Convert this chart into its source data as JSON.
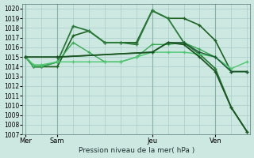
{
  "title": "Pression niveau de la mer( hPa )",
  "bg_color": "#cce8e0",
  "grid_color": "#aacccc",
  "plot_bg": "#cce8e0",
  "ylim": [
    1007,
    1020.5
  ],
  "xlim": [
    -0.2,
    14.2
  ],
  "yticks": [
    1007,
    1008,
    1009,
    1010,
    1011,
    1012,
    1013,
    1014,
    1015,
    1016,
    1017,
    1018,
    1019,
    1020
  ],
  "xtick_labels": [
    "Mer",
    "Sam",
    "Jeu",
    "Ven"
  ],
  "xtick_positions": [
    0,
    2,
    8,
    12
  ],
  "vline_positions": [
    0,
    2,
    8,
    12
  ],
  "series": [
    {
      "x": [
        0,
        0.5,
        1,
        2,
        3,
        4,
        5,
        6,
        7,
        8,
        9,
        10,
        11,
        12,
        13,
        14
      ],
      "y": [
        1015.0,
        1014.0,
        1014.0,
        1014.0,
        1017.2,
        1017.7,
        1016.5,
        1016.5,
        1016.5,
        1019.8,
        1019.0,
        1019.0,
        1018.3,
        1016.7,
        1013.5,
        1013.5
      ],
      "color": "#1a6020",
      "lw": 1.2,
      "marker": "+"
    },
    {
      "x": [
        0,
        0.5,
        1,
        2,
        3,
        4,
        5,
        6,
        7,
        8,
        9,
        10,
        11,
        12,
        13,
        14
      ],
      "y": [
        1015.0,
        1014.0,
        1014.0,
        1014.5,
        1018.2,
        1017.7,
        1016.5,
        1016.5,
        1016.3,
        1019.8,
        1019.0,
        1016.5,
        1015.3,
        1013.8,
        1009.8,
        1007.3
      ],
      "color": "#2a7a38",
      "lw": 1.3,
      "marker": "+"
    },
    {
      "x": [
        0,
        0.5,
        1,
        2,
        3,
        4,
        5,
        6,
        7,
        8,
        9,
        10,
        11,
        12,
        13,
        14
      ],
      "y": [
        1015.0,
        1014.0,
        1014.0,
        1014.5,
        1016.5,
        1015.5,
        1014.5,
        1014.5,
        1015.0,
        1016.3,
        1016.3,
        1016.5,
        1015.8,
        1015.0,
        1013.5,
        1013.5
      ],
      "color": "#3aaa55",
      "lw": 1.0,
      "marker": "+"
    },
    {
      "x": [
        0,
        0.5,
        1,
        2,
        3,
        4,
        5,
        6,
        7,
        8,
        9,
        10,
        11,
        12,
        13,
        14
      ],
      "y": [
        1015.0,
        1014.2,
        1014.2,
        1014.5,
        1014.5,
        1014.5,
        1014.5,
        1014.5,
        1015.0,
        1015.5,
        1015.5,
        1015.5,
        1015.3,
        1015.0,
        1013.8,
        1014.5
      ],
      "color": "#4dc870",
      "lw": 1.0,
      "marker": "+"
    },
    {
      "x": [
        0,
        2,
        8,
        9,
        10,
        11,
        12,
        13,
        14
      ],
      "y": [
        1015.0,
        1015.0,
        1015.5,
        1016.5,
        1016.5,
        1015.5,
        1015.0,
        1013.5,
        1013.5
      ],
      "color": "#205535",
      "lw": 1.0,
      "marker": "+"
    },
    {
      "x": [
        0,
        2,
        8,
        9,
        10,
        11,
        12,
        13,
        14
      ],
      "y": [
        1015.0,
        1015.0,
        1015.5,
        1016.5,
        1016.3,
        1015.0,
        1013.5,
        1009.8,
        1007.3
      ],
      "color": "#1a5522",
      "lw": 1.3,
      "marker": "+"
    }
  ]
}
